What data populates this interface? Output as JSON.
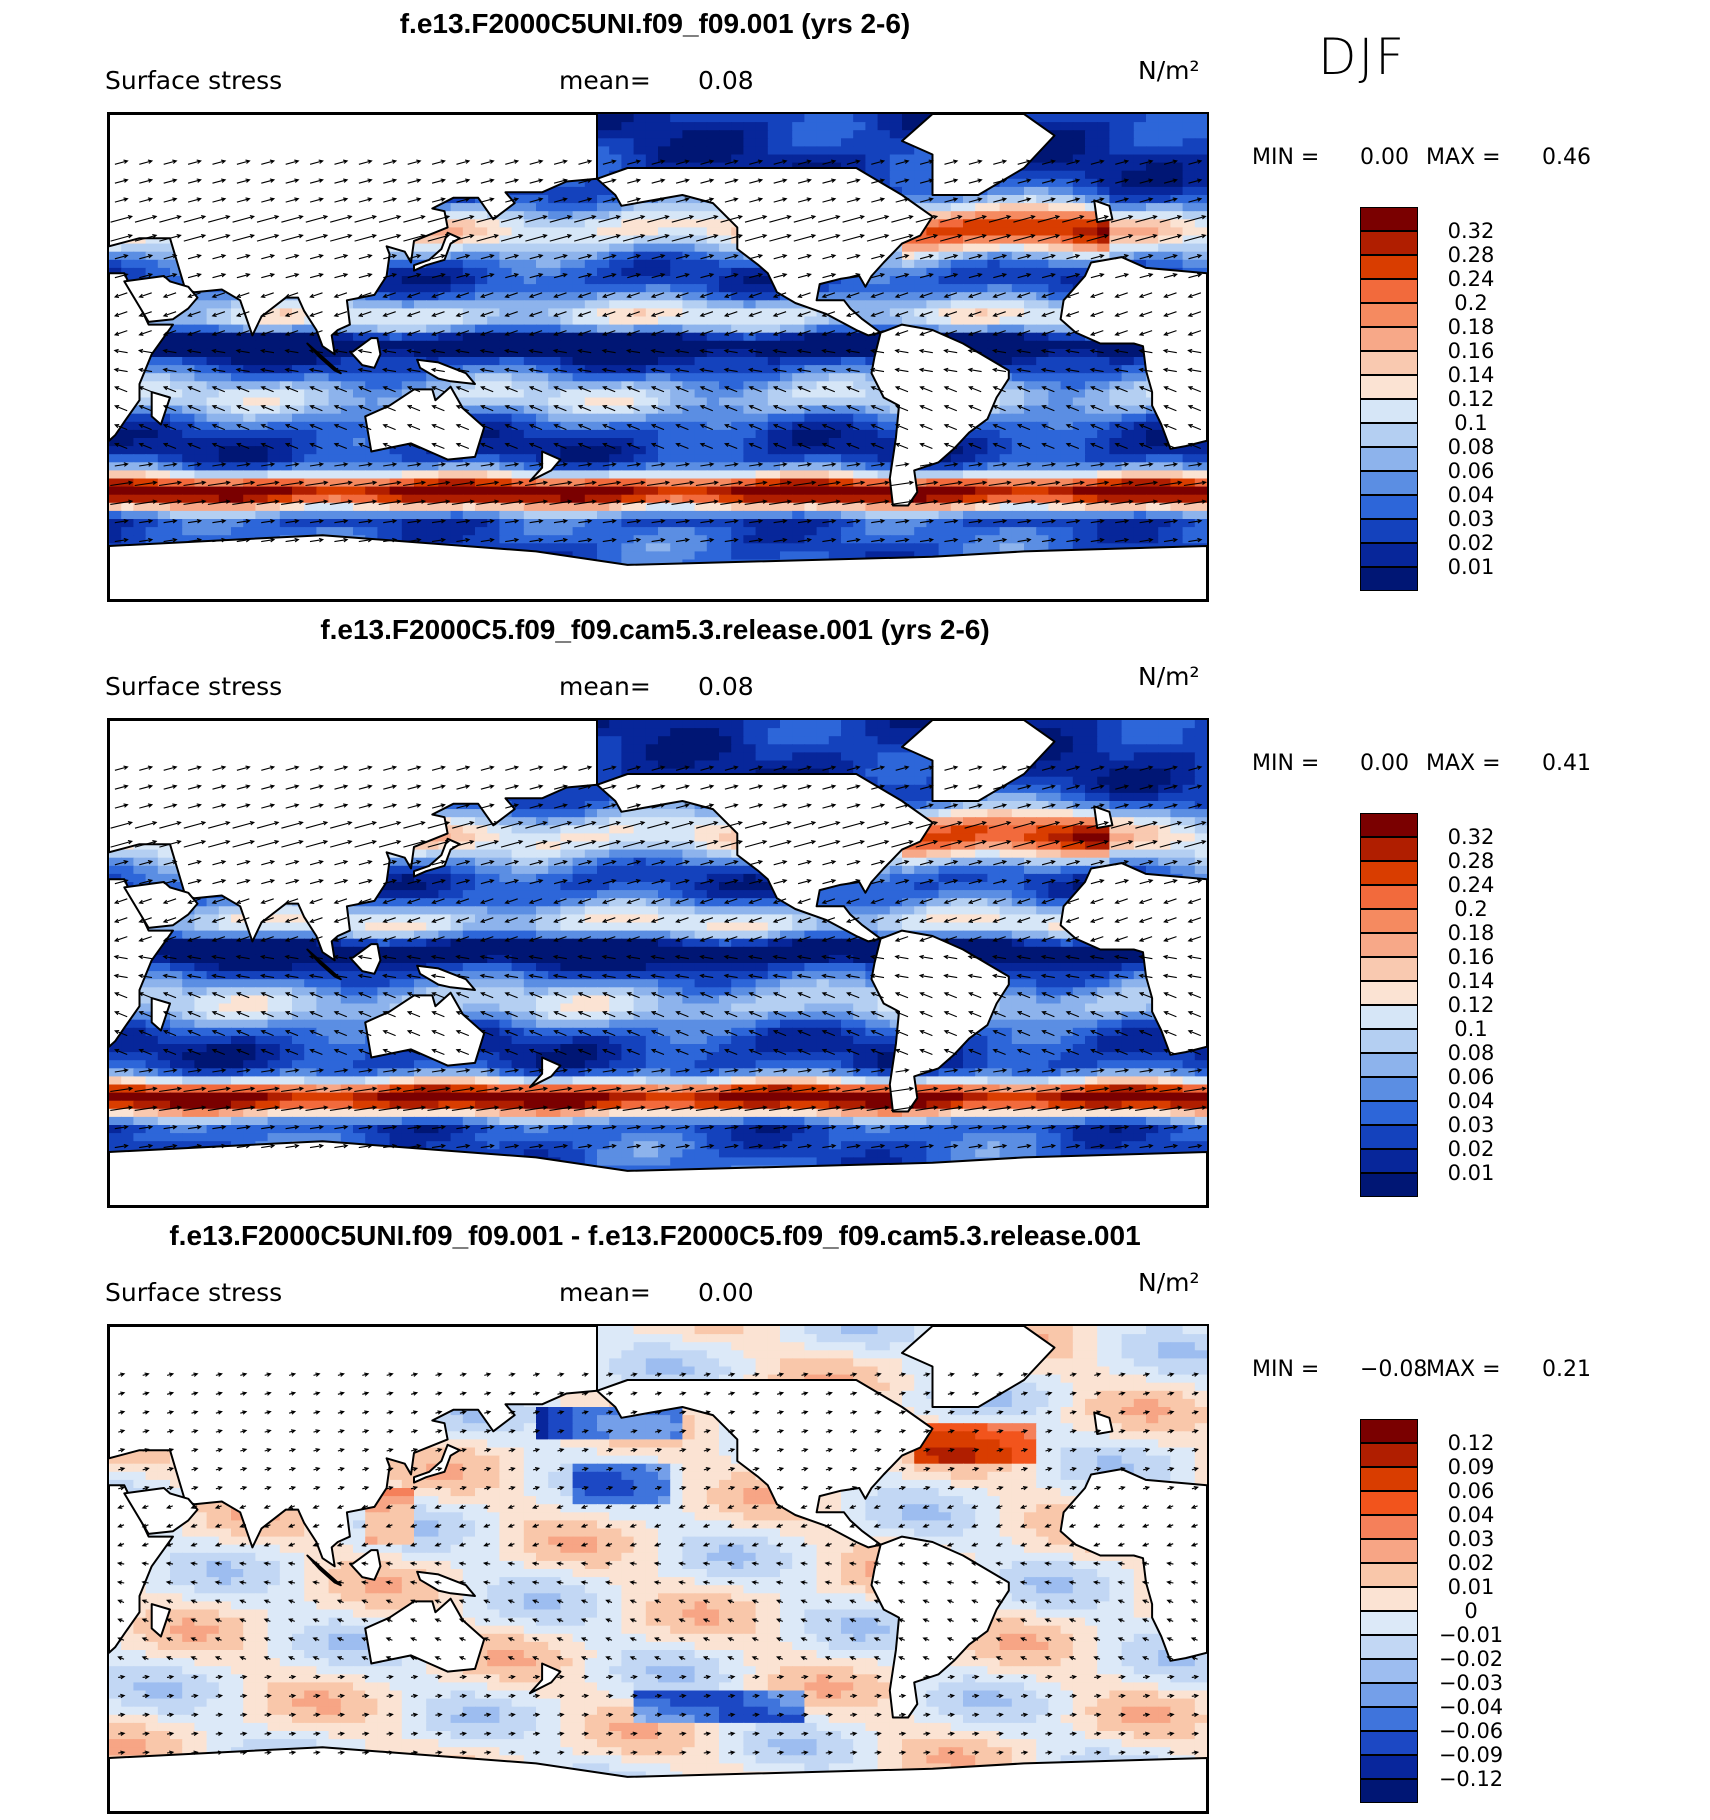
{
  "season": "DJF",
  "panels": [
    {
      "title": "f.e13.F2000C5UNI.f09_f09.001 (yrs 2-6)",
      "variable": "Surface stress",
      "mean_label": "mean=",
      "mean_value": "0.08",
      "units": "N/m²",
      "min_label": "MIN =",
      "min_value": "0.00",
      "max_label": "MAX =",
      "max_value": "0.46",
      "colorbar": {
        "labels": [
          "0.32",
          "0.28",
          "0.24",
          "0.2",
          "0.18",
          "0.16",
          "0.14",
          "0.12",
          "0.1",
          "0.08",
          "0.06",
          "0.04",
          "0.03",
          "0.02",
          "0.01"
        ],
        "colors": [
          "#7a0000",
          "#b01e00",
          "#d93d00",
          "#f26a3c",
          "#f58a60",
          "#f7a888",
          "#f9c9b0",
          "#fbe3d3",
          "#d6e6f7",
          "#b4cff2",
          "#8db3ec",
          "#5b8ee3",
          "#2d66d9",
          "#1442bd",
          "#07269a",
          "#001674"
        ]
      },
      "field": "mean"
    },
    {
      "title": "f.e13.F2000C5.f09_f09.cam5.3.release.001 (yrs 2-6)",
      "variable": "Surface stress",
      "mean_label": "mean=",
      "mean_value": "0.08",
      "units": "N/m²",
      "min_label": "MIN =",
      "min_value": "0.00",
      "max_label": "MAX =",
      "max_value": "0.41",
      "colorbar": {
        "labels": [
          "0.32",
          "0.28",
          "0.24",
          "0.2",
          "0.18",
          "0.16",
          "0.14",
          "0.12",
          "0.1",
          "0.08",
          "0.06",
          "0.04",
          "0.03",
          "0.02",
          "0.01"
        ],
        "colors": [
          "#7a0000",
          "#b01e00",
          "#d93d00",
          "#f26a3c",
          "#f58a60",
          "#f7a888",
          "#f9c9b0",
          "#fbe3d3",
          "#d6e6f7",
          "#b4cff2",
          "#8db3ec",
          "#5b8ee3",
          "#2d66d9",
          "#1442bd",
          "#07269a",
          "#001674"
        ]
      },
      "field": "mean"
    },
    {
      "title": "f.e13.F2000C5UNI.f09_f09.001 - f.e13.F2000C5.f09_f09.cam5.3.release.001",
      "variable": "Surface stress",
      "mean_label": "mean=",
      "mean_value": "0.00",
      "units": "N/m²",
      "min_label": "MIN =",
      "min_value": "−0.08",
      "max_label": "MAX =",
      "max_value": "0.21",
      "colorbar": {
        "labels": [
          "0.12",
          "0.09",
          "0.06",
          "0.04",
          "0.03",
          "0.02",
          "0.01",
          "0",
          "−0.01",
          "−0.02",
          "−0.03",
          "−0.04",
          "−0.06",
          "−0.09",
          "−0.12"
        ],
        "colors": [
          "#7a0000",
          "#b01e00",
          "#d93d00",
          "#f2541c",
          "#f5805a",
          "#f7a585",
          "#f9c7aa",
          "#fbe3d3",
          "#dce9f8",
          "#c2d7f4",
          "#9dbdf0",
          "#749fe9",
          "#3f74dc",
          "#1c48c4",
          "#08269c",
          "#001674"
        ]
      },
      "field": "diff"
    }
  ]
}
